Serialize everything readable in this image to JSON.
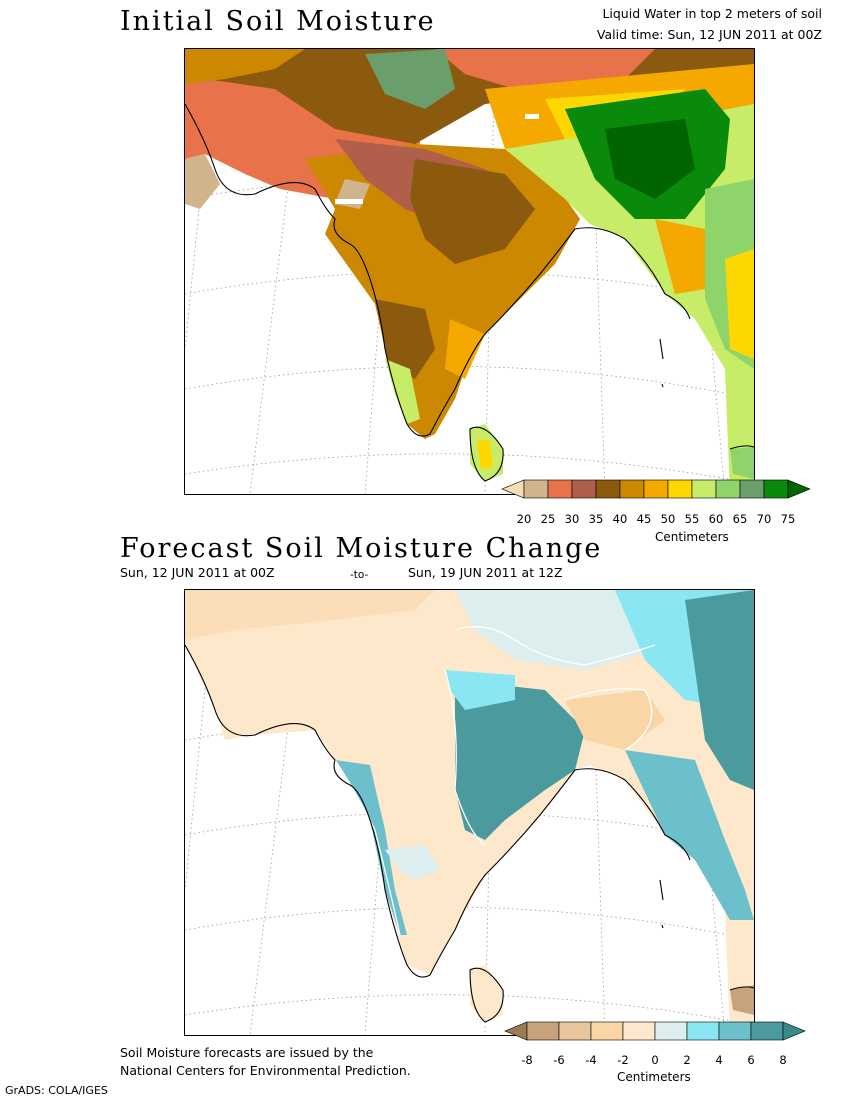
{
  "top": {
    "title": "Initial Soil Moisture",
    "subtitle_line1": "Liquid Water in top 2 meters of soil",
    "subtitle_line2": "Valid time: Sun, 12 JUN 2011 at 00Z",
    "colorbar": {
      "labels": [
        "20",
        "25",
        "30",
        "35",
        "40",
        "45",
        "50",
        "55",
        "60",
        "65",
        "70",
        "75"
      ],
      "colors": [
        "#f5deb3",
        "#d2b48c",
        "#e8734a",
        "#b0604a",
        "#8b5a0f",
        "#cc8800",
        "#f5a800",
        "#ffd700",
        "#c6ec68",
        "#8ed46b",
        "#6a9e6a",
        "#0a8a0a",
        "#006400"
      ],
      "units": "Centimeters"
    }
  },
  "bottom": {
    "title": "Forecast Soil Moisture Change",
    "period_start": "Sun, 12 JUN 2011 at 00Z",
    "period_sep": "-to-",
    "period_end": "Sun, 19 JUN 2011 at 12Z",
    "colorbar": {
      "labels": [
        "-8",
        "-6",
        "-4",
        "-2",
        "0",
        "2",
        "4",
        "6",
        "8"
      ],
      "colors": [
        "#9c7a55",
        "#c8a27a",
        "#e8c59c",
        "#fad5a5",
        "#fde8cc",
        "#dceeee",
        "#8ae6f2",
        "#6cc0cc",
        "#4a9a9e",
        "#3a8a8c"
      ],
      "units": "Centimeters"
    }
  },
  "footer": {
    "note_line1": "Soil Moisture forecasts are issued by the",
    "note_line2": "National Centers for Environmental Prediction.",
    "credit": "GrADS: COLA/IGES"
  }
}
